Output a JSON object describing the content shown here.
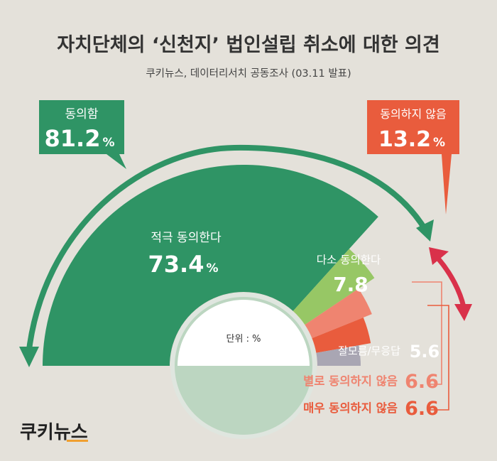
{
  "title": "자치단체의 ‘신천지’ 법인설립 취소에 대한 의견",
  "subtitle": "쿠키뉴스, 데이터리서치 공동조사 (03.11 발표)",
  "unit_label": "단위 : %",
  "logo_text": "쿠키뉴스",
  "colors": {
    "background": "#e4e1da",
    "dark_green": "#2f9465",
    "light_green": "#97c765",
    "salmon": "#ef8470",
    "orange_red": "#e95c3d",
    "gray": "#a9a6b3",
    "crimson": "#d9314a",
    "title_text": "#333333"
  },
  "summary": {
    "agree": {
      "label": "동의함",
      "value": "81.2",
      "percent": "%"
    },
    "disagree": {
      "label": "동의하지 않음",
      "value": "13.2",
      "percent": "%"
    }
  },
  "chart_data": {
    "type": "pie",
    "shape": "half-donut",
    "unit": "%",
    "slices": [
      {
        "label": "적극 동의한다",
        "value": 73.4,
        "display": "73.4",
        "suffix": "%",
        "color": "#2f9465"
      },
      {
        "label": "다소 동의한다",
        "value": 7.8,
        "display": "7.8",
        "suffix": "",
        "color": "#97c765"
      },
      {
        "label": "별로 동의하지 않음",
        "value": 6.6,
        "display": "6.6",
        "suffix": "",
        "color": "#ef8470"
      },
      {
        "label": "매우 동의하지 않음",
        "value": 6.6,
        "display": "6.6",
        "suffix": "",
        "color": "#e95c3d"
      },
      {
        "label": "잘모름/무응답",
        "value": 5.6,
        "display": "5.6",
        "suffix": "",
        "color": "#a9a6b3"
      }
    ]
  }
}
